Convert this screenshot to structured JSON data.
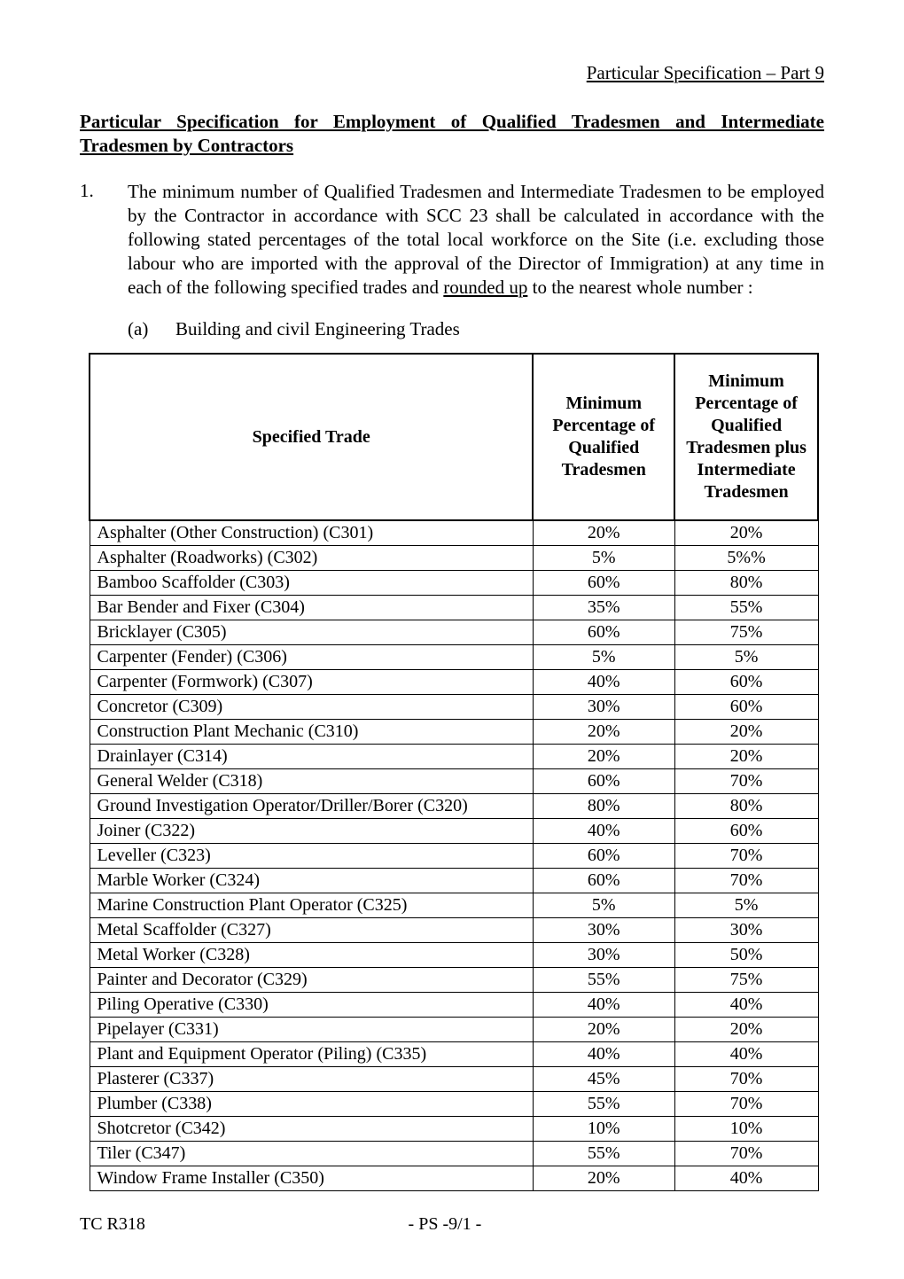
{
  "header": {
    "right": "Particular Specification – Part 9"
  },
  "title": {
    "line1": "Particular Specification for Employment of Qualified Tradesmen and Intermediate",
    "line2": "Tradesmen by Contractors"
  },
  "para1": {
    "num": "1.",
    "text_before": "The minimum number of Qualified Tradesmen and Intermediate Tradesmen to be employed by the Contractor in accordance with SCC 23 shall be calculated in accordance with the following stated percentages of the total local workforce on the Site (i.e. excluding those labour who are imported with the approval of the Director of Immigration) at any time in each of the following specified trades and ",
    "underlined": "rounded up",
    "text_after": " to the nearest whole number :"
  },
  "sub_a": {
    "label": "(a)",
    "text": "Building and civil Engineering Trades"
  },
  "table": {
    "columns": [
      "Specified Trade",
      "Minimum Percentage of Qualified Tradesmen",
      "Minimum Percentage of Qualified Tradesmen plus Intermediate Tradesmen"
    ],
    "rows": [
      [
        "Asphalter (Other Construction) (C301)",
        "20%",
        "20%"
      ],
      [
        "Asphalter (Roadworks) (C302)",
        "5%",
        "5%%"
      ],
      [
        "Bamboo Scaffolder (C303)",
        "60%",
        "80%"
      ],
      [
        "Bar Bender and Fixer (C304)",
        "35%",
        "55%"
      ],
      [
        "Bricklayer (C305)",
        "60%",
        "75%"
      ],
      [
        "Carpenter (Fender) (C306)",
        "5%",
        "5%"
      ],
      [
        "Carpenter (Formwork) (C307)",
        "40%",
        "60%"
      ],
      [
        "Concretor (C309)",
        "30%",
        "60%"
      ],
      [
        "Construction Plant Mechanic (C310)",
        "20%",
        "20%"
      ],
      [
        "Drainlayer (C314)",
        "20%",
        "20%"
      ],
      [
        "General Welder (C318)",
        "60%",
        "70%"
      ],
      [
        "Ground Investigation Operator/Driller/Borer (C320)",
        "80%",
        "80%"
      ],
      [
        "Joiner (C322)",
        "40%",
        "60%"
      ],
      [
        "Leveller (C323)",
        "60%",
        "70%"
      ],
      [
        "Marble Worker (C324)",
        "60%",
        "70%"
      ],
      [
        "Marine Construction Plant Operator (C325)",
        "5%",
        "5%"
      ],
      [
        "Metal Scaffolder (C327)",
        "30%",
        "30%"
      ],
      [
        "Metal Worker (C328)",
        "30%",
        "50%"
      ],
      [
        "Painter and Decorator (C329)",
        "55%",
        "75%"
      ],
      [
        "Piling Operative (C330)",
        "40%",
        "40%"
      ],
      [
        "Pipelayer (C331)",
        "20%",
        "20%"
      ],
      [
        "Plant and Equipment Operator (Piling) (C335)",
        "40%",
        "40%"
      ],
      [
        "Plasterer (C337)",
        "45%",
        "70%"
      ],
      [
        "Plumber (C338)",
        "55%",
        "70%"
      ],
      [
        "Shotcretor (C342)",
        "10%",
        "10%"
      ],
      [
        "Tiler (C347)",
        "55%",
        "70%"
      ],
      [
        "Window Frame Installer (C350)",
        "20%",
        "40%"
      ]
    ]
  },
  "footer": {
    "left": "TC R318",
    "center": "- PS -9/1 -"
  }
}
